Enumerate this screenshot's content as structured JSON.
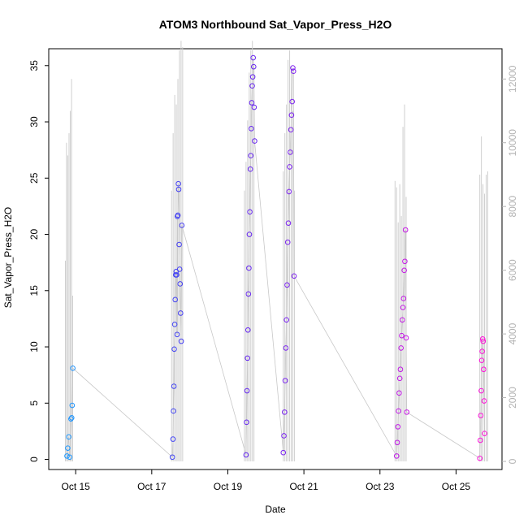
{
  "chart_data": {
    "type": "scatter",
    "title": "ATOM3 Northbound Sat_Vapor_Press_H2O",
    "xlabel": "Date",
    "ylabel": "Sat_Vapor_Press_H2O",
    "x_ticks": [
      "Oct 15",
      "Oct 17",
      "Oct 19",
      "Oct 21",
      "Oct 23",
      "Oct 25"
    ],
    "x_tick_dates": [
      "2016-10-15",
      "2016-10-17",
      "2016-10-19",
      "2016-10-21",
      "2016-10-23",
      "2016-10-25"
    ],
    "xlim": [
      "2016-10-14T07:00",
      "2016-10-26T05:00"
    ],
    "ylim": [
      -0.9,
      36.5
    ],
    "y_ticks": [
      0,
      5,
      10,
      15,
      20,
      25,
      30,
      35
    ],
    "y2_ticks": [
      0,
      2000,
      4000,
      6000,
      8000,
      10000,
      12000
    ],
    "y2lim": [
      -255,
      12950
    ],
    "grid": false,
    "legend": "none",
    "colors": {
      "points_start": "#1f9aff",
      "points_mid": "#4f2cf0",
      "points_late": "#9a1cf0",
      "points_end": "#ff10d8",
      "secondary_series": "#cfcfcf",
      "axis": "#000000",
      "right_axis": "#b3b3b3"
    },
    "point_series": [
      {
        "day": "2016-10-14",
        "hours": [
          18.5,
          19.0,
          19.6,
          20.2,
          21.0,
          21.5,
          21.8,
          22.2
        ],
        "values": [
          0.3,
          1.0,
          2.0,
          0.2,
          3.6,
          3.7,
          4.8,
          8.1
        ]
      },
      {
        "day": "2016-10-17",
        "hours": [
          13.0,
          13.4,
          13.7,
          14.0,
          14.2,
          14.5,
          14.8,
          15.1,
          15.4,
          15.7,
          16.0,
          16.2,
          16.5,
          16.8,
          17.0,
          17.3,
          17.6,
          17.9,
          18.2,
          18.6,
          19.0
        ],
        "values": [
          0.2,
          1.8,
          4.3,
          6.5,
          9.8,
          12.0,
          14.2,
          16.4,
          16.7,
          16.4,
          11.1,
          21.6,
          21.7,
          24.5,
          24.0,
          19.1,
          16.9,
          15.6,
          13.0,
          10.5,
          20.8
        ]
      },
      {
        "day": "2016-10-19",
        "hours": [
          11.5,
          11.8,
          12.1,
          12.4,
          12.7,
          13.0,
          13.3,
          13.6,
          13.9,
          14.2,
          14.5,
          14.8,
          15.1,
          15.4,
          15.7,
          16.0,
          16.3,
          16.6,
          16.9
        ],
        "values": [
          0.4,
          3.3,
          6.1,
          9.0,
          11.5,
          14.7,
          17.0,
          20.0,
          22.0,
          25.8,
          27.0,
          29.4,
          31.7,
          33.2,
          34.0,
          35.7,
          34.9,
          31.3,
          28.3
        ]
      },
      {
        "day": "2016-10-20",
        "hours": [
          11.0,
          11.4,
          11.8,
          12.2,
          12.6,
          13.0,
          13.4,
          13.8,
          14.2,
          14.6,
          15.0,
          15.4,
          15.8,
          16.2,
          16.6,
          17.0,
          17.4,
          17.8
        ],
        "values": [
          0.6,
          2.1,
          4.2,
          7.0,
          9.9,
          12.4,
          15.5,
          19.3,
          21.0,
          23.8,
          26.0,
          27.3,
          29.3,
          30.6,
          31.8,
          34.8,
          34.5,
          16.3
        ]
      },
      {
        "day": "2016-10-23",
        "hours": [
          10.5,
          10.9,
          11.3,
          11.7,
          12.1,
          12.5,
          12.9,
          13.3,
          13.7,
          14.1,
          14.5,
          14.9,
          15.3,
          15.7,
          16.1,
          16.5,
          16.9
        ],
        "values": [
          0.3,
          1.5,
          2.9,
          4.3,
          5.9,
          7.2,
          8.0,
          9.9,
          11.0,
          12.4,
          13.5,
          14.3,
          16.8,
          17.6,
          20.4,
          10.8,
          4.2
        ]
      },
      {
        "day": "2016-10-25",
        "hours": [
          15.0,
          15.3,
          15.6,
          15.9,
          16.2,
          16.5,
          16.8,
          17.1,
          17.4,
          17.7,
          18.0
        ],
        "values": [
          0.1,
          1.7,
          3.9,
          6.1,
          8.8,
          9.6,
          10.7,
          10.5,
          8.0,
          5.2,
          2.3
        ]
      }
    ],
    "secondary_series": {
      "axis": "right",
      "bursts": [
        {
          "day": "2016-10-14",
          "hours": [
            17.5,
            18.2,
            19.0,
            19.8,
            20.6,
            21.4,
            22.1
          ],
          "values": [
            6300,
            10000,
            9600,
            10300,
            11000,
            12000,
            5200
          ]
        },
        {
          "day": "2016-10-17",
          "hours": [
            12.5,
            13.5,
            14.5,
            15.5,
            16.5,
            17.5,
            18.5,
            19.5
          ],
          "values": [
            8500,
            10300,
            11500,
            11200,
            12000,
            12900,
            13200,
            13000
          ]
        },
        {
          "day": "2016-10-19",
          "hours": [
            10.5,
            11.5,
            12.5,
            13.5,
            14.5,
            15.5,
            16.5
          ],
          "values": [
            8500,
            9400,
            10700,
            12200,
            12900,
            13200,
            12400
          ]
        },
        {
          "day": "2016-10-20",
          "hours": [
            11.0,
            12.0,
            13.0,
            14.0,
            15.0,
            16.0,
            17.0,
            18.0
          ],
          "values": [
            9100,
            10300,
            11200,
            12600,
            12900,
            12400,
            11000,
            8500
          ]
        },
        {
          "day": "2016-10-23",
          "hours": [
            9.5,
            10.5,
            11.5,
            12.5,
            13.5,
            14.5,
            15.5,
            16.5
          ],
          "values": [
            8800,
            8600,
            7500,
            8700,
            7700,
            10500,
            11200,
            8300
          ]
        },
        {
          "day": "2016-10-25",
          "hours": [
            15.0,
            16.0,
            17.0,
            18.0,
            19.0,
            20.0
          ],
          "values": [
            9000,
            10200,
            8700,
            8400,
            9000,
            9100
          ]
        }
      ]
    }
  }
}
